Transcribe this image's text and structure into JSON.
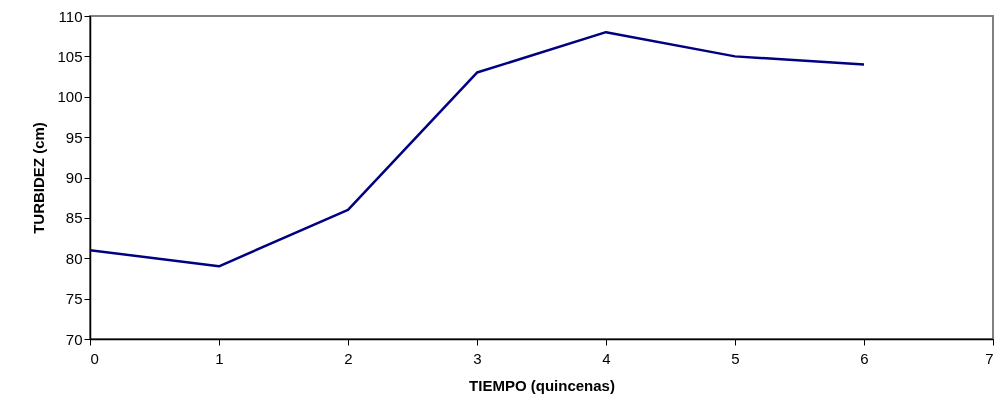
{
  "chart_data": {
    "type": "line",
    "xlabel": "TIEMPO (quincenas)",
    "ylabel": "TURBIDEZ (cm)",
    "x": [
      0,
      1,
      2,
      3,
      4,
      5,
      6
    ],
    "series": [
      {
        "color": "#000080",
        "values": [
          81,
          79,
          86,
          103,
          108,
          105,
          104
        ]
      }
    ],
    "xlim": [
      0,
      7
    ],
    "xticks": [
      0,
      1,
      2,
      3,
      4,
      5,
      6,
      7
    ],
    "ylim": [
      70,
      110
    ],
    "yticks": [
      70,
      75,
      80,
      85,
      90,
      95,
      100,
      105,
      110
    ],
    "grid": false,
    "marker": "none",
    "line_style": "solid"
  }
}
